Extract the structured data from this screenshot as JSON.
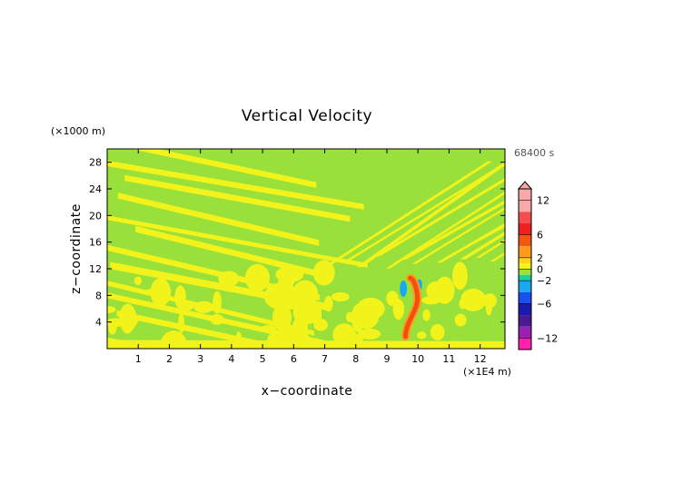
{
  "chart_data": {
    "type": "heatmap",
    "title": "Vertical Velocity",
    "xlabel": "x−coordinate",
    "ylabel": "z−coordinate",
    "x_unit": "(×1E4 m)",
    "y_unit": "(×1000 m)",
    "time_label": "68400 s",
    "xlim": [
      0,
      12.8
    ],
    "ylim": [
      0,
      30
    ],
    "x_ticks": [
      "1",
      "2",
      "3",
      "4",
      "5",
      "6",
      "7",
      "8",
      "9",
      "10",
      "11",
      "12"
    ],
    "y_ticks": [
      "4",
      "8",
      "12",
      "16",
      "20",
      "24",
      "28"
    ],
    "colorbar": {
      "range": [
        -14,
        14
      ],
      "tick_labels": [
        "12",
        "6",
        "2",
        "0",
        "−2",
        "−6",
        "−12"
      ],
      "tick_values": [
        12,
        6,
        2,
        0,
        -2,
        -6,
        -12
      ],
      "levels": [
        {
          "from": 10,
          "to": 14,
          "color": "#f7a8a8"
        },
        {
          "from": 8,
          "to": 10,
          "color": "#f25050"
        },
        {
          "from": 6,
          "to": 8,
          "color": "#f02020"
        },
        {
          "from": 4,
          "to": 6,
          "color": "#f05a10"
        },
        {
          "from": 2,
          "to": 4,
          "color": "#ff9a1a"
        },
        {
          "from": 1,
          "to": 2,
          "color": "#ffd21a"
        },
        {
          "from": 0,
          "to": 1,
          "color": "#f4f41a"
        },
        {
          "from": -1,
          "to": 0,
          "color": "#9be33a"
        },
        {
          "from": -2,
          "to": -1,
          "color": "#20cfa0"
        },
        {
          "from": -4,
          "to": -2,
          "color": "#1aa9f0"
        },
        {
          "from": -6,
          "to": -4,
          "color": "#1a50f0"
        },
        {
          "from": -8,
          "to": -6,
          "color": "#1a1ab0"
        },
        {
          "from": -10,
          "to": -8,
          "color": "#4a1a90"
        },
        {
          "from": -12,
          "to": -10,
          "color": "#9a20b0"
        },
        {
          "from": -14,
          "to": -12,
          "color": "#ff20b0"
        }
      ]
    },
    "field_colors": {
      "background": "#99e03a",
      "positive_band": "#f3f31c",
      "updraft_core": "#f05010",
      "updraft_edge": "#ff9a1a",
      "downdraft": "#1aa9f0"
    }
  }
}
